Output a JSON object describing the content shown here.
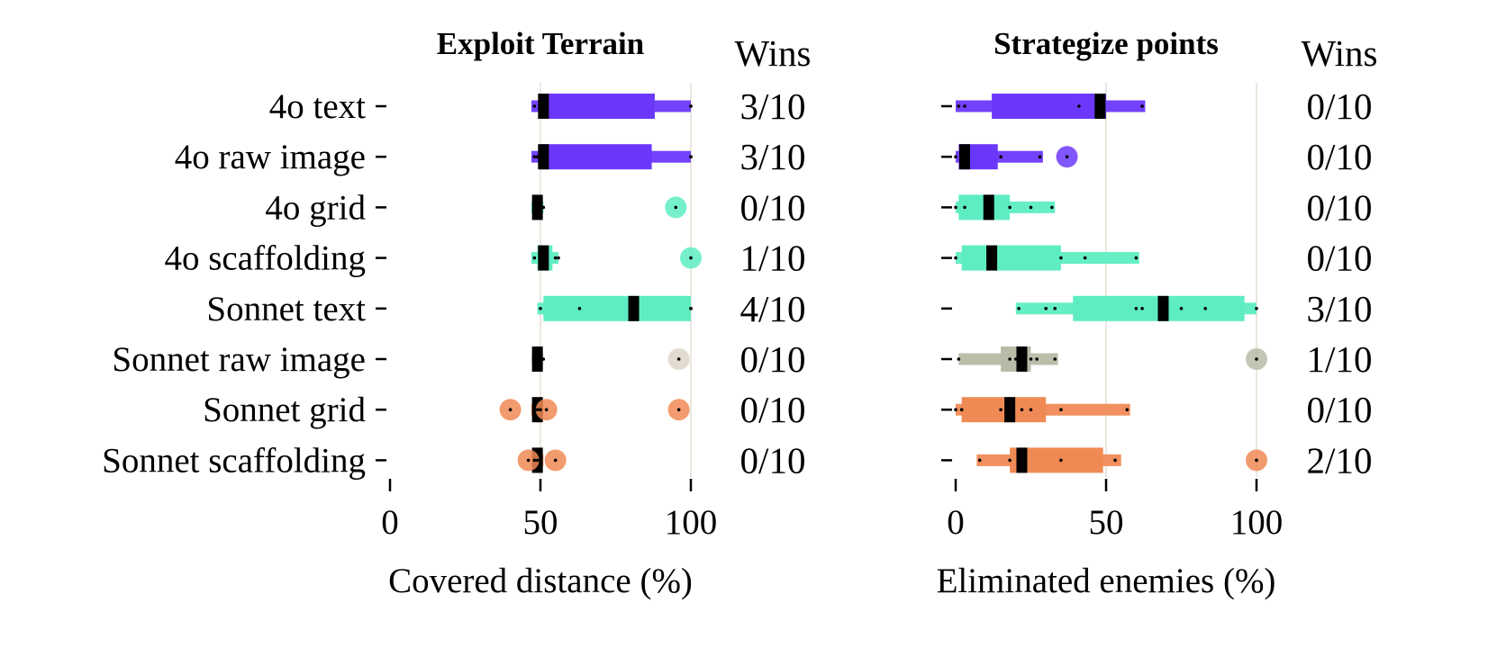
{
  "row_labels": [
    "4o text",
    "4o raw image",
    "4o grid",
    "4o scaffolding",
    "Sonnet text",
    "Sonnet raw image",
    "Sonnet grid",
    "Sonnet scaffolding"
  ],
  "wins_header": "Wins",
  "chart_data": [
    {
      "type": "boxplot",
      "title": "Exploit Terrain",
      "xlabel": "Covered distance (%)",
      "xlim": [
        0,
        100
      ],
      "xticks": [
        "0",
        "50",
        "100"
      ],
      "series": [
        {
          "label": "4o text",
          "color": "#6B38FB",
          "min": 47,
          "q1": 50,
          "median": 51,
          "q3": 88,
          "max": 100,
          "whisker_lo": 47,
          "whisker_hi": 100,
          "outliers": [],
          "points": [
            48,
            50,
            100,
            100
          ],
          "wins": "3/10"
        },
        {
          "label": "4o raw image",
          "color": "#6B38FB",
          "min": 47,
          "q1": 50,
          "median": 51,
          "q3": 87,
          "max": 100,
          "whisker_lo": 47,
          "whisker_hi": 100,
          "outliers": [],
          "points": [
            48,
            49,
            100,
            100
          ],
          "wins": "3/10"
        },
        {
          "label": "4o grid",
          "color": "#5EEDC2",
          "min": 47,
          "q1": 48,
          "median": 49,
          "q3": 50,
          "max": 51,
          "whisker_lo": 47,
          "whisker_hi": 51,
          "outliers": [
            95
          ],
          "points": [
            48,
            49,
            50,
            51
          ],
          "wins": "0/10"
        },
        {
          "label": "4o scaffolding",
          "color": "#5EEDC2",
          "min": 47,
          "q1": 49,
          "median": 51,
          "q3": 54,
          "max": 56,
          "whisker_lo": 47,
          "whisker_hi": 56,
          "outliers": [
            100
          ],
          "points": [
            48,
            50,
            52,
            55,
            56
          ],
          "wins": "1/10"
        },
        {
          "label": "Sonnet text",
          "color": "#5EEDC2",
          "min": 49,
          "q1": 51,
          "median": 81,
          "q3": 100,
          "max": 100,
          "whisker_lo": 49,
          "whisker_hi": 100,
          "outliers": [],
          "points": [
            50,
            63,
            100,
            100,
            100
          ],
          "wins": "4/10"
        },
        {
          "label": "Sonnet raw image",
          "color": "#DCD6C7",
          "min": 47,
          "q1": 48,
          "median": 49,
          "q3": 50,
          "max": 51,
          "whisker_lo": 47,
          "whisker_hi": 51,
          "outliers": [
            96
          ],
          "points": [
            48,
            49,
            50,
            51
          ],
          "wins": "0/10"
        },
        {
          "label": "Sonnet grid",
          "color": "#F08A55",
          "min": 47,
          "q1": 48,
          "median": 49,
          "q3": 50,
          "max": 51,
          "whisker_lo": 47,
          "whisker_hi": 51,
          "outliers": [
            40,
            52,
            96
          ],
          "points": [
            48,
            49,
            50
          ],
          "wins": "0/10"
        },
        {
          "label": "Sonnet scaffolding",
          "color": "#F08A55",
          "min": 47,
          "q1": 48,
          "median": 49,
          "q3": 50,
          "max": 51,
          "whisker_lo": 47,
          "whisker_hi": 51,
          "outliers": [
            46,
            55
          ],
          "points": [
            48,
            49,
            50
          ],
          "wins": "0/10"
        }
      ]
    },
    {
      "type": "boxplot",
      "title": "Strategize points",
      "xlabel": "Eliminated enemies (%)",
      "xlim": [
        0,
        100
      ],
      "xticks": [
        "0",
        "50",
        "100"
      ],
      "series": [
        {
          "label": "4o text",
          "color": "#6B38FB",
          "min": 0,
          "q1": 12,
          "median": 48,
          "q3": 50,
          "max": 63,
          "whisker_lo": 0,
          "whisker_hi": 63,
          "outliers": [],
          "points": [
            1,
            3,
            41,
            62
          ],
          "wins": "0/10"
        },
        {
          "label": "4o raw image",
          "color": "#6B38FB",
          "min": 0,
          "q1": 1,
          "median": 3,
          "q3": 14,
          "max": 29,
          "whisker_lo": 0,
          "whisker_hi": 29,
          "outliers": [
            37
          ],
          "points": [
            0,
            2,
            15,
            28
          ],
          "wins": "0/10"
        },
        {
          "label": "4o grid",
          "color": "#5EEDC2",
          "min": 0,
          "q1": 1,
          "median": 11,
          "q3": 18,
          "max": 33,
          "whisker_lo": 0,
          "whisker_hi": 33,
          "outliers": [],
          "points": [
            0,
            3,
            18,
            25,
            32
          ],
          "wins": "0/10"
        },
        {
          "label": "4o scaffolding",
          "color": "#5EEDC2",
          "min": 0,
          "q1": 2,
          "median": 12,
          "q3": 35,
          "max": 61,
          "whisker_lo": 0,
          "whisker_hi": 61,
          "outliers": [],
          "points": [
            0,
            35,
            43,
            60
          ],
          "wins": "0/10"
        },
        {
          "label": "Sonnet text",
          "color": "#5EEDC2",
          "min": 20,
          "q1": 39,
          "median": 69,
          "q3": 96,
          "max": 100,
          "whisker_lo": 20,
          "whisker_hi": 100,
          "outliers": [],
          "points": [
            21,
            30,
            33,
            60,
            62,
            75,
            83,
            100
          ],
          "wins": "3/10"
        },
        {
          "label": "Sonnet raw image",
          "color": "#B8BBA8",
          "min": 1,
          "q1": 15,
          "median": 22,
          "q3": 25,
          "max": 34,
          "whisker_lo": 1,
          "whisker_hi": 34,
          "outliers": [
            100
          ],
          "points": [
            1,
            18,
            20,
            25,
            27,
            33
          ],
          "wins": "1/10"
        },
        {
          "label": "Sonnet grid",
          "color": "#F08A55",
          "min": 0,
          "q1": 2,
          "median": 18,
          "q3": 30,
          "max": 58,
          "whisker_lo": 0,
          "whisker_hi": 58,
          "outliers": [],
          "points": [
            0,
            2,
            15,
            22,
            25,
            35,
            57
          ],
          "wins": "0/10"
        },
        {
          "label": "Sonnet scaffolding",
          "color": "#F08A55",
          "min": 7,
          "q1": 18,
          "median": 22,
          "q3": 49,
          "max": 55,
          "whisker_lo": 7,
          "whisker_hi": 55,
          "outliers": [
            100
          ],
          "points": [
            8,
            18,
            22,
            35,
            53
          ],
          "wins": "2/10"
        }
      ]
    }
  ]
}
